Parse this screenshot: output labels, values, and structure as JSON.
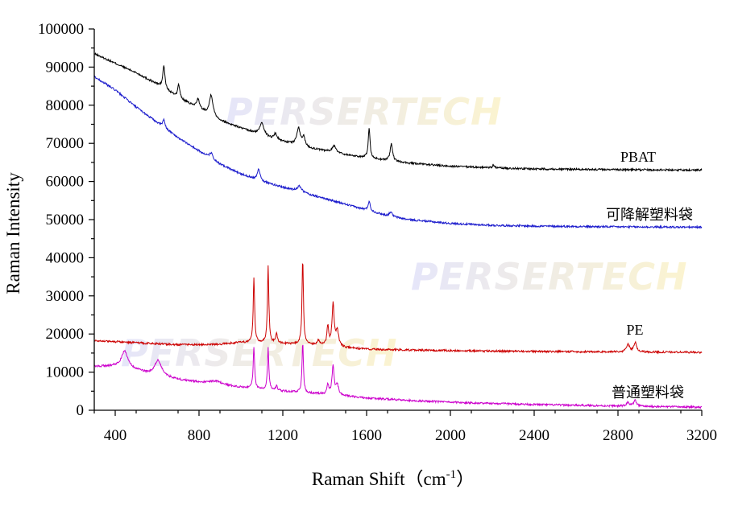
{
  "chart_data": {
    "type": "line",
    "title": "",
    "xlabel_main": "Raman Shift（cm",
    "xlabel_sup": "-1",
    "xlabel_end": "）",
    "ylabel": "Raman Intensity",
    "xlim": [
      300,
      3200
    ],
    "ylim": [
      0,
      100000
    ],
    "x_ticks": [
      400,
      800,
      1200,
      1600,
      2000,
      2400,
      2800,
      3200
    ],
    "y_ticks": [
      0,
      10000,
      20000,
      30000,
      40000,
      50000,
      60000,
      70000,
      80000,
      90000,
      100000
    ],
    "watermark": "PERSERTECH",
    "colors": {
      "axis": "#000000",
      "wm_start": "#b8b8f0",
      "wm_end": "#f5e07a"
    },
    "series": [
      {
        "name": "PBAT",
        "label": "PBAT",
        "color": "#000000",
        "baseline": [
          [
            300,
            93500
          ],
          [
            400,
            91000
          ],
          [
            500,
            88500
          ],
          [
            600,
            85500
          ],
          [
            700,
            82000
          ],
          [
            800,
            79000
          ],
          [
            900,
            76000
          ],
          [
            1000,
            74000
          ],
          [
            1100,
            72000
          ],
          [
            1200,
            70500
          ],
          [
            1300,
            69000
          ],
          [
            1400,
            68000
          ],
          [
            1500,
            67000
          ],
          [
            1600,
            66200
          ],
          [
            1700,
            65500
          ],
          [
            1800,
            64800
          ],
          [
            2000,
            64000
          ],
          [
            2200,
            63600
          ],
          [
            2400,
            63300
          ],
          [
            2800,
            63100
          ],
          [
            3200,
            63000
          ]
        ],
        "peaks": [
          [
            632,
            6000,
            6
          ],
          [
            703,
            3500,
            6
          ],
          [
            795,
            2500,
            8
          ],
          [
            858,
            5500,
            10
          ],
          [
            1100,
            3500,
            12
          ],
          [
            1165,
            1500,
            8
          ],
          [
            1275,
            4500,
            10
          ],
          [
            1300,
            2500,
            8
          ],
          [
            1445,
            1800,
            12
          ],
          [
            1612,
            8000,
            5
          ],
          [
            1718,
            4500,
            7
          ],
          [
            2205,
            800,
            4
          ]
        ]
      },
      {
        "name": "可降解塑料袋",
        "label": "可降解塑料袋",
        "color": "#1a1acc",
        "baseline": [
          [
            300,
            87500
          ],
          [
            400,
            84000
          ],
          [
            500,
            79500
          ],
          [
            600,
            75500
          ],
          [
            700,
            71500
          ],
          [
            800,
            68000
          ],
          [
            900,
            64500
          ],
          [
            1000,
            62000
          ],
          [
            1100,
            60000
          ],
          [
            1200,
            58500
          ],
          [
            1300,
            57000
          ],
          [
            1400,
            55500
          ],
          [
            1500,
            54000
          ],
          [
            1600,
            52500
          ],
          [
            1700,
            51000
          ],
          [
            1800,
            50000
          ],
          [
            2000,
            49000
          ],
          [
            2200,
            48500
          ],
          [
            2400,
            48300
          ],
          [
            2800,
            48100
          ],
          [
            3200,
            48000
          ]
        ],
        "peaks": [
          [
            632,
            2000,
            6
          ],
          [
            858,
            1500,
            10
          ],
          [
            1085,
            3000,
            8
          ],
          [
            1280,
            1500,
            12
          ],
          [
            1612,
            2500,
            6
          ],
          [
            1715,
            1200,
            8
          ]
        ]
      },
      {
        "name": "PE",
        "label": "PE",
        "color": "#cc0000",
        "baseline": [
          [
            300,
            18300
          ],
          [
            500,
            17700
          ],
          [
            700,
            17200
          ],
          [
            900,
            17300
          ],
          [
            1000,
            17800
          ],
          [
            1100,
            17700
          ],
          [
            1200,
            17500
          ],
          [
            1300,
            17300
          ],
          [
            1400,
            17000
          ],
          [
            1470,
            16500
          ],
          [
            1600,
            16000
          ],
          [
            1800,
            15800
          ],
          [
            2200,
            15500
          ],
          [
            2800,
            15300
          ],
          [
            3200,
            15200
          ]
        ],
        "peaks": [
          [
            1062,
            17000,
            4
          ],
          [
            1130,
            20000,
            4
          ],
          [
            1170,
            2500,
            5
          ],
          [
            1295,
            22000,
            4
          ],
          [
            1370,
            1200,
            6
          ],
          [
            1415,
            5000,
            5
          ],
          [
            1440,
            11000,
            6
          ],
          [
            1460,
            4000,
            8
          ],
          [
            2848,
            2000,
            8
          ],
          [
            2882,
            2500,
            8
          ]
        ]
      },
      {
        "name": "普通塑料袋",
        "label": "普通塑料袋",
        "color": "#cc00cc",
        "baseline": [
          [
            300,
            11500
          ],
          [
            400,
            11500
          ],
          [
            500,
            10500
          ],
          [
            560,
            9500
          ],
          [
            700,
            8000
          ],
          [
            900,
            6500
          ],
          [
            1000,
            6000
          ],
          [
            1200,
            5000
          ],
          [
            1400,
            4200
          ],
          [
            1600,
            3200
          ],
          [
            1800,
            2600
          ],
          [
            2000,
            2100
          ],
          [
            2400,
            1500
          ],
          [
            2800,
            1100
          ],
          [
            3200,
            800
          ]
        ],
        "peaks": [
          [
            445,
            4500,
            18
          ],
          [
            605,
            4000,
            20
          ],
          [
            880,
            1000,
            40
          ],
          [
            1062,
            11000,
            4
          ],
          [
            1130,
            11000,
            4
          ],
          [
            1170,
            1200,
            5
          ],
          [
            1295,
            13000,
            4
          ],
          [
            1415,
            2500,
            5
          ],
          [
            1440,
            7500,
            6
          ],
          [
            1460,
            2500,
            8
          ],
          [
            2848,
            1000,
            8
          ],
          [
            2882,
            1500,
            8
          ]
        ]
      }
    ]
  }
}
